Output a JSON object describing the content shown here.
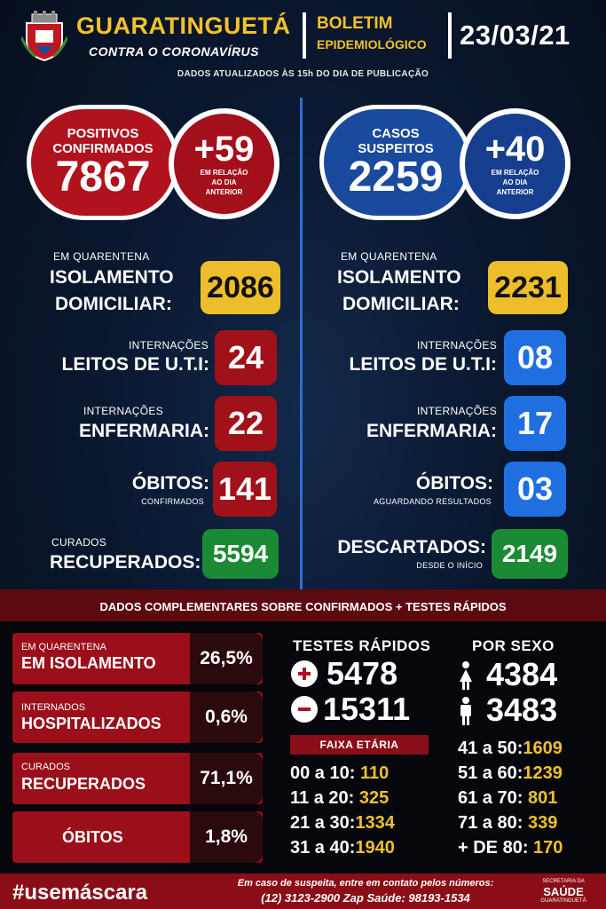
{
  "header": {
    "city": "GUARATINGUETÁ",
    "subtitle": "CONTRA O CORONAVÍRUS",
    "boletim_line1": "BOLETIM",
    "boletim_line2": "EPIDEMIOLÓGICO",
    "date": "23/03/21",
    "updated": "DADOS ATUALIZADOS ÀS 15h DO DIA DE PUBLICAÇÃO"
  },
  "confirmed": {
    "label_line1": "POSITIVOS",
    "label_line2": "CONFIRMADOS",
    "total": "7867",
    "delta": "+59",
    "delta_note_1": "EM RELAÇÃO",
    "delta_note_2": "AO DIA",
    "delta_note_3": "ANTERIOR",
    "quarantine_small": "EM QUARENTENA",
    "quarantine_big_1": "ISOLAMENTO",
    "quarantine_big_2": "DOMICILIAR:",
    "quarantine_value": "2086",
    "uti_small": "INTERNAÇÕES",
    "uti_big": "LEITOS DE U.T.I:",
    "uti_value": "24",
    "enf_small": "INTERNAÇÕES",
    "enf_big": "ENFERMARIA:",
    "enf_value": "22",
    "obitos_big": "ÓBITOS:",
    "obitos_small": "CONFIRMADOS",
    "obitos_value": "141",
    "curados_small": "CURADOS",
    "curados_big": "RECUPERADOS:",
    "curados_value": "5594"
  },
  "suspected": {
    "label_line1": "CASOS",
    "label_line2": "SUSPEITOS",
    "total": "2259",
    "delta": "+40",
    "delta_note_1": "EM RELAÇÃO",
    "delta_note_2": "AO DIA",
    "delta_note_3": "ANTERIOR",
    "quarantine_small": "EM QUARENTENA",
    "quarantine_big_1": "ISOLAMENTO",
    "quarantine_big_2": "DOMICILIAR:",
    "quarantine_value": "2231",
    "uti_small": "INTERNAÇÕES",
    "uti_big": "LEITOS DE U.T.I:",
    "uti_value": "08",
    "enf_small": "INTERNAÇÕES",
    "enf_big": "ENFERMARIA:",
    "enf_value": "17",
    "obitos_big": "ÓBITOS:",
    "obitos_small": "AGUARDANDO RESULTADOS",
    "obitos_value": "03",
    "descartados_big": "DESCARTADOS:",
    "descartados_small": "DESDE O INÍCIO",
    "descartados_value": "2149"
  },
  "complementary": {
    "title": "DADOS COMPLEMENTARES SOBRE CONFIRMADOS + TESTES RÁPIDOS",
    "percentages": [
      {
        "small": "EM QUARENTENA",
        "big": "EM ISOLAMENTO",
        "value": "26,5%"
      },
      {
        "small": "INTERNADOS",
        "big": "HOSPITALIZADOS",
        "value": "0,6%"
      },
      {
        "small": "CURADOS",
        "big": "RECUPERADOS",
        "value": "71,1%"
      },
      {
        "small": "",
        "big": "ÓBITOS",
        "value": "1,8%"
      }
    ],
    "tests_title": "TESTES RÁPIDOS",
    "tests_positive": "5478",
    "tests_negative": "15311",
    "sex_title": "POR SEXO",
    "female": "4384",
    "male": "3483",
    "age_title": "FAIXA ETÁRIA",
    "ages_left": [
      {
        "range": "00 a 10:",
        "value": "110"
      },
      {
        "range": "11 a 20:",
        "value": "325"
      },
      {
        "range": "21 a 30:",
        "value": "1334"
      },
      {
        "range": "31 a 40:",
        "value": "1940"
      }
    ],
    "ages_right": [
      {
        "range": "41 a 50:",
        "value": "1609"
      },
      {
        "range": "51 a 60:",
        "value": "1239"
      },
      {
        "range": "61 a 70:",
        "value": "801"
      },
      {
        "range": "71 a 80:",
        "value": "339"
      },
      {
        "range": "+ DE 80:",
        "value": "170"
      }
    ]
  },
  "footer": {
    "hashtag": "#usemáscara",
    "contact_line1": "Em caso de suspeita, entre em contato pelos números:",
    "contact_line2": "(12) 3123-2900 Zap Saúde: 98193-1534",
    "sec_line1": "SECRETARIA DA",
    "sec_line2": "SAÚDE",
    "sec_line3": "GUARATINGUETÁ"
  },
  "colors": {
    "red": "#a1111a",
    "blue": "#1f6fe0",
    "yellow": "#eebd2c",
    "green": "#1b8a35",
    "navy": "#0a1830"
  },
  "icons": [
    "city-crest-icon",
    "plus-circle-icon",
    "minus-circle-icon",
    "female-icon",
    "male-icon"
  ]
}
